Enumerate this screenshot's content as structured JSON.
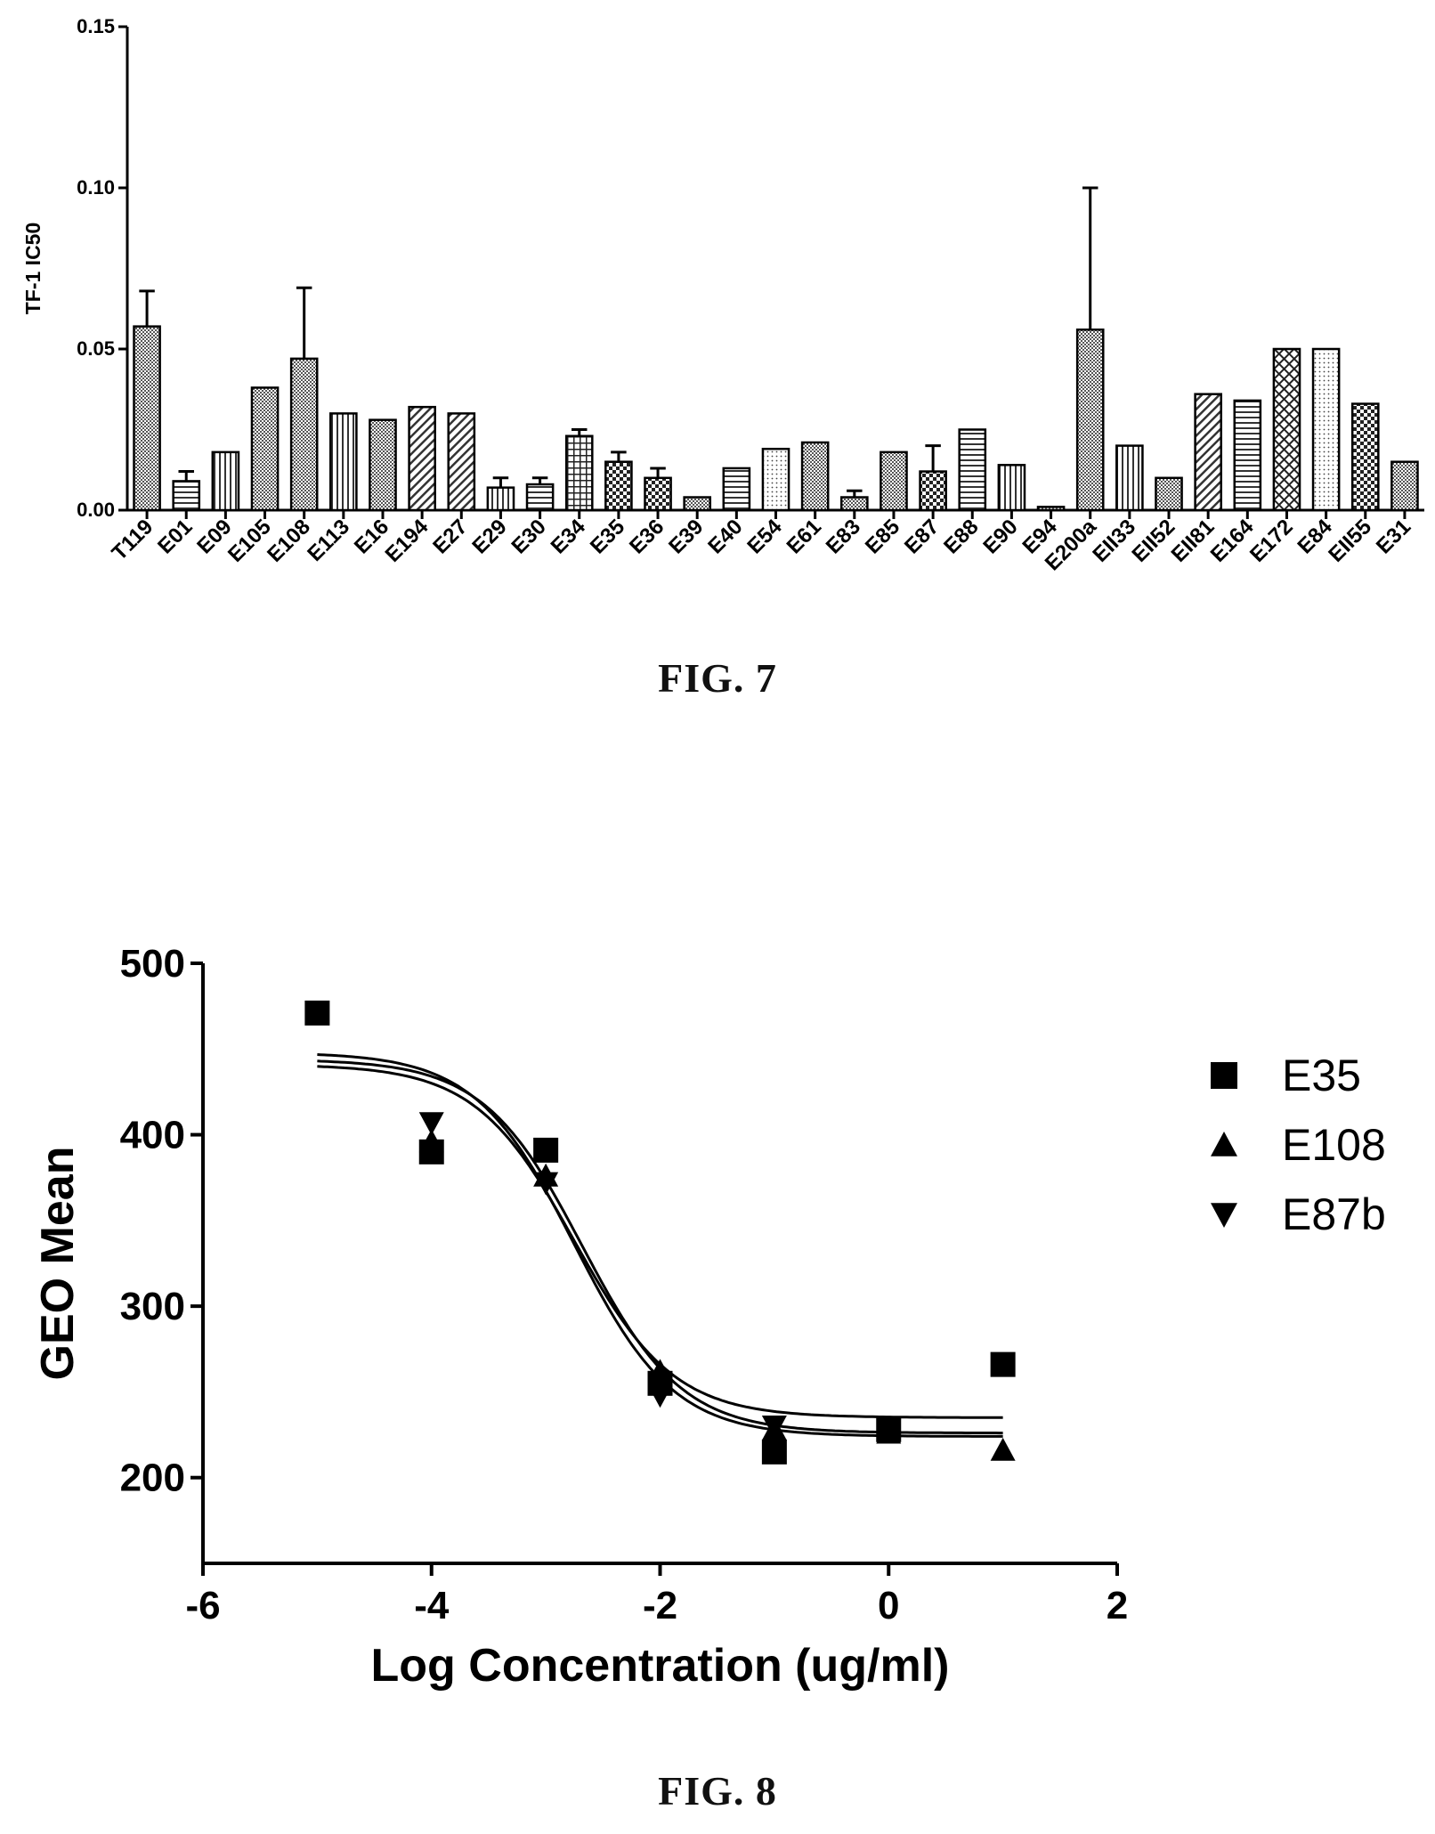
{
  "figures": [
    {
      "caption": "FIG. 7"
    },
    {
      "caption": "FIG. 8"
    }
  ],
  "chart_data": [
    {
      "type": "bar",
      "title": "",
      "xlabel": "",
      "ylabel": "TF-1 IC50",
      "ylim": [
        0,
        0.15
      ],
      "yticks": [
        "0.00",
        "0.05",
        "0.10",
        "0.15"
      ],
      "categories": [
        "T119",
        "E01",
        "E09",
        "E105",
        "E108",
        "E113",
        "E16",
        "E194",
        "E27",
        "E29",
        "E30",
        "E34",
        "E35",
        "E36",
        "E39",
        "E40",
        "E54",
        "E61",
        "E83",
        "E85",
        "E87",
        "E88",
        "E90",
        "E94",
        "E200a",
        "EII33",
        "EII52",
        "EII81",
        "E164",
        "E172",
        "E84",
        "EII55",
        "E31"
      ],
      "values": [
        0.057,
        0.009,
        0.018,
        0.038,
        0.047,
        0.03,
        0.028,
        0.032,
        0.03,
        0.007,
        0.008,
        0.023,
        0.015,
        0.01,
        0.004,
        0.013,
        0.019,
        0.021,
        0.004,
        0.018,
        0.012,
        0.025,
        0.014,
        0.001,
        0.056,
        0.02,
        0.01,
        0.036,
        0.034,
        0.05,
        0.05,
        0.033,
        0.015
      ],
      "errors": [
        0.011,
        0.003,
        0,
        0,
        0.022,
        0,
        0,
        0,
        0,
        0.003,
        0.002,
        0.002,
        0.003,
        0.003,
        0,
        0,
        0,
        0,
        0.002,
        0,
        0.008,
        0,
        0,
        0,
        0.044,
        0,
        0,
        0,
        0,
        0,
        0,
        0,
        0
      ],
      "patterns": [
        "dense",
        "hstripe",
        "vstripe",
        "dense",
        "dense",
        "vstripe",
        "dense",
        "diag",
        "diag",
        "vstripe",
        "hstripe",
        "grid",
        "check",
        "check",
        "dense",
        "hstripe",
        "dots",
        "dense",
        "dense",
        "dense",
        "check",
        "hstripe",
        "vstripe",
        "dense",
        "dense",
        "vstripe",
        "dense",
        "diag",
        "hstripe",
        "crosshatch",
        "dots",
        "check",
        "dense"
      ],
      "grid": false
    },
    {
      "type": "scatter",
      "title": "",
      "xlabel": "Log Concentration (ug/ml)",
      "ylabel": "GEO Mean",
      "xlim": [
        -6,
        2
      ],
      "ylim": [
        150,
        500
      ],
      "xticks": [
        "-6",
        "-4",
        "-2",
        "0",
        "2"
      ],
      "yticks": [
        "200",
        "300",
        "400",
        "500"
      ],
      "legend_position": "right",
      "grid": false,
      "series": [
        {
          "name": "E35",
          "marker": "square",
          "x": [
            -5,
            -4,
            -3,
            -2,
            -1,
            0,
            1
          ],
          "y": [
            471,
            390,
            391,
            255,
            215,
            228,
            266
          ],
          "fit": {
            "top": 448,
            "bottom": 224,
            "logec50": -2.75,
            "hill": -1.0
          }
        },
        {
          "name": "E108",
          "marker": "triangle-up",
          "x": [
            -4,
            -3,
            -2,
            -1,
            0,
            1
          ],
          "y": [
            396,
            376,
            262,
            228,
            226,
            216
          ],
          "fit": {
            "top": 441,
            "bottom": 235,
            "logec50": -2.75,
            "hill": -1.0
          }
        },
        {
          "name": "E87b",
          "marker": "triangle-down",
          "x": [
            -4,
            -3,
            -2,
            -1,
            0
          ],
          "y": [
            407,
            372,
            248,
            230,
            228
          ],
          "fit": {
            "top": 444,
            "bottom": 226,
            "logec50": -2.68,
            "hill": -1.0
          }
        }
      ]
    }
  ]
}
